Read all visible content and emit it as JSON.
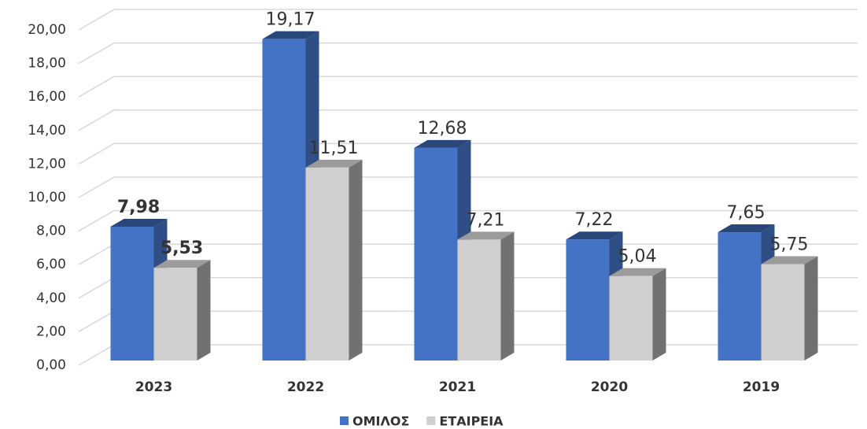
{
  "chart_data": {
    "type": "bar3d",
    "categories": [
      "2023",
      "2022",
      "2021",
      "2020",
      "2019"
    ],
    "series": [
      {
        "name": "ΟΜΙΛΟΣ",
        "color": "#4472c4",
        "values": [
          7.98,
          19.17,
          12.68,
          7.22,
          7.65
        ],
        "value_labels": [
          "7,98",
          "19,17",
          "12,68",
          "7,22",
          "7,65"
        ]
      },
      {
        "name": "ΕΤΑΙΡΕΙΑ",
        "color": "#d0cece",
        "values": [
          5.53,
          11.51,
          7.21,
          5.04,
          5.75
        ],
        "value_labels": [
          "5,53",
          "11,51",
          "7,21",
          "5,04",
          "5,75"
        ]
      }
    ],
    "ylim": [
      0,
      20
    ],
    "yticks": [
      {
        "value": 0,
        "label": "0,00"
      },
      {
        "value": 2,
        "label": "2,00"
      },
      {
        "value": 4,
        "label": "4,00"
      },
      {
        "value": 6,
        "label": "6,00"
      },
      {
        "value": 8,
        "label": "8,00"
      },
      {
        "value": 10,
        "label": "10,00"
      },
      {
        "value": 12,
        "label": "12,00"
      },
      {
        "value": 14,
        "label": "14,00"
      },
      {
        "value": 16,
        "label": "16,00"
      },
      {
        "value": 18,
        "label": "18,00"
      },
      {
        "value": 20,
        "label": "20,00"
      }
    ],
    "grid": true,
    "legend": "bottom"
  }
}
